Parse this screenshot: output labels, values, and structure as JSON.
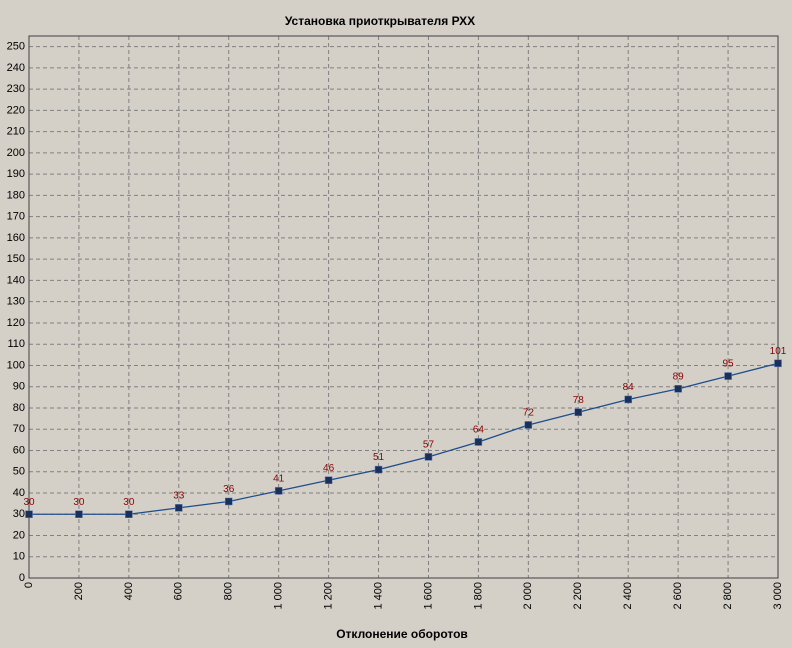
{
  "chart_data": {
    "type": "line",
    "title": "Установка приоткрывателя РХХ",
    "x_label": "Отклонение оборотов",
    "x": [
      0,
      200,
      400,
      600,
      800,
      1000,
      1200,
      1400,
      1600,
      1800,
      2000,
      2200,
      2400,
      2600,
      2800,
      3000
    ],
    "series": [
      {
        "color": "#1f4e8c",
        "marker_color": "#1a2f5a",
        "label_color": "#8b0000",
        "values": [
          30,
          30,
          30,
          33,
          36,
          41,
          46,
          51,
          57,
          64,
          72,
          78,
          84,
          89,
          95,
          101
        ]
      }
    ],
    "xlim": [
      0,
      3000
    ],
    "xticks": [
      0,
      200,
      400,
      600,
      800,
      {
        "value": 1000,
        "label": "1 000"
      },
      {
        "value": 1200,
        "label": "1 200"
      },
      {
        "value": 1400,
        "label": "1 400"
      },
      {
        "value": 1600,
        "label": "1 600"
      },
      {
        "value": 1800,
        "label": "1 800"
      },
      {
        "value": 2000,
        "label": "2 000"
      },
      {
        "value": 2200,
        "label": "2 200"
      },
      {
        "value": 2400,
        "label": "2 400"
      },
      {
        "value": 2600,
        "label": "2 600"
      },
      {
        "value": 2800,
        "label": "2 800"
      },
      {
        "value": 3000,
        "label": "3 000"
      }
    ],
    "ylim": [
      0,
      255
    ],
    "yticks": [
      0,
      10,
      20,
      30,
      40,
      50,
      60,
      70,
      80,
      90,
      100,
      110,
      120,
      130,
      140,
      150,
      160,
      170,
      180,
      190,
      200,
      210,
      220,
      230,
      240,
      250
    ],
    "grid": true
  }
}
